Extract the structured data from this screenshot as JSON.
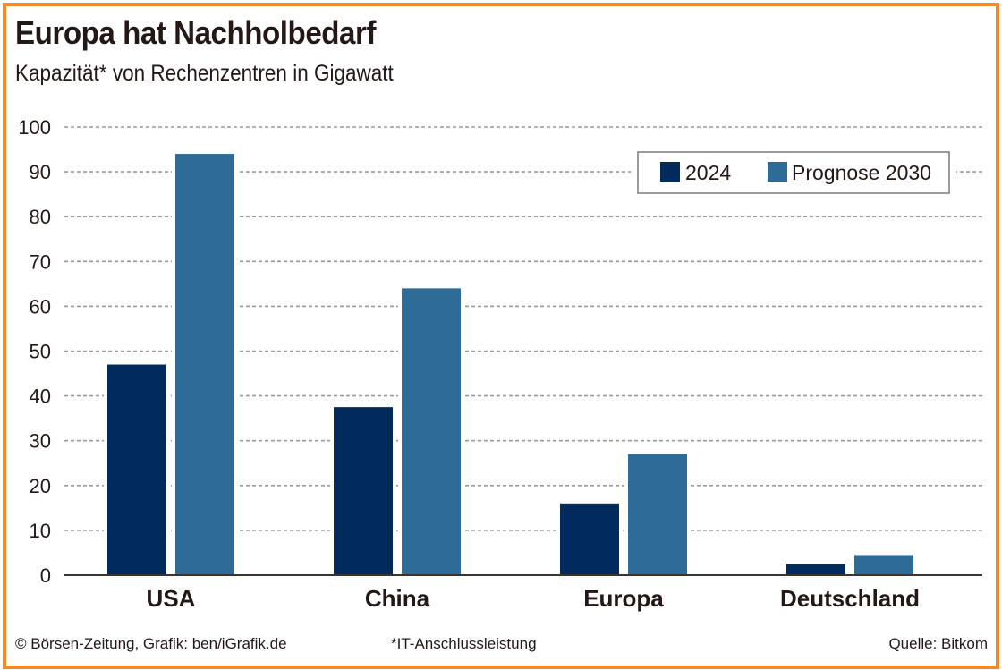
{
  "title": "Europa hat Nachholbedarf",
  "subtitle": "Kapazität* von Rechenzentren in Gigawatt",
  "footer": {
    "credit": "© Börsen-Zeitung, Grafik: ben/iGrafik.de",
    "note": "*IT-Anschlussleistung",
    "source": "Quelle: Bitkom"
  },
  "colors": {
    "frame": "#f08a2a",
    "series_2024": "#002b5c",
    "series_2030": "#2e6b96",
    "highlight_label": "#9b2216",
    "text": "#231815",
    "grid": "#9a9a9a"
  },
  "chart_data": {
    "type": "bar",
    "title": "Europa hat Nachholbedarf",
    "subtitle": "Kapazität* von Rechenzentren in Gigawatt",
    "xlabel": "",
    "ylabel": "",
    "categories": [
      "USA",
      "China",
      "Europa",
      "Deutschland"
    ],
    "highlighted_category": "Europa",
    "series": [
      {
        "name": "2024",
        "values": [
          47,
          37.5,
          16,
          2.5
        ]
      },
      {
        "name": "Prognose 2030",
        "values": [
          94,
          64,
          27,
          4.5
        ]
      }
    ],
    "ylim": [
      0,
      100
    ],
    "yticks": [
      0,
      10,
      20,
      30,
      40,
      50,
      60,
      70,
      80,
      90,
      100
    ],
    "ytick_labels": [
      "0",
      "10",
      "20",
      "30",
      "40",
      "50",
      "60",
      "70",
      "80",
      "90",
      "100"
    ],
    "grid": true,
    "grid_style": "dotted",
    "legend": {
      "position": "top-right",
      "entries": [
        "2024",
        "Prognose 2030"
      ]
    },
    "footnote": "*IT-Anschlussleistung",
    "source": "Quelle: Bitkom"
  }
}
